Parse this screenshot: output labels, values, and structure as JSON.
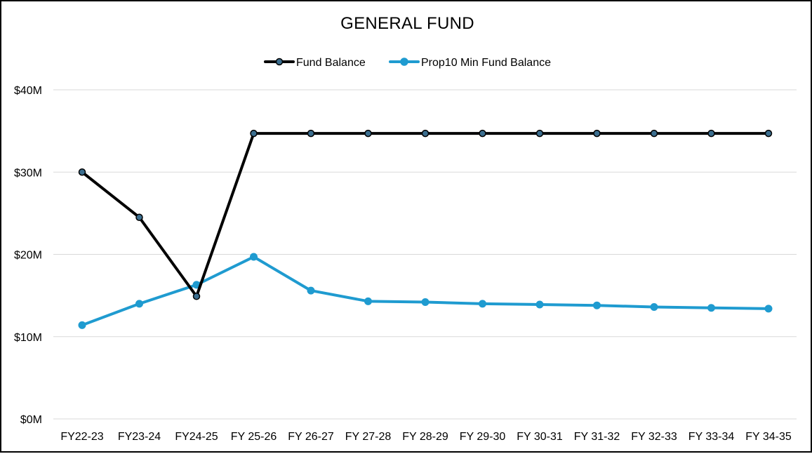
{
  "chart_data": {
    "type": "line",
    "title": "GENERAL FUND",
    "xlabel": "",
    "ylabel": "",
    "categories": [
      "FY22-23",
      "FY23-24",
      "FY24-25",
      "FY 25-26",
      "FY 26-27",
      "FY 27-28",
      "FY 28-29",
      "FY 29-30",
      "FY 30-31",
      "FY 31-32",
      "FY 32-33",
      "FY 33-34",
      "FY 34-35"
    ],
    "ylim": [
      0,
      40
    ],
    "yticks": [
      0,
      10,
      20,
      30,
      40
    ],
    "ytick_labels": [
      "$0M",
      "$10M",
      "$20M",
      "$30M",
      "$40M"
    ],
    "y_unit": "$M",
    "grid": true,
    "legend_position": "top-center",
    "series": [
      {
        "name": "Fund Balance",
        "color": "#000000",
        "marker_fill": "#3b6e8f",
        "values": [
          30.0,
          24.5,
          14.9,
          34.7,
          34.7,
          34.7,
          34.7,
          34.7,
          34.7,
          34.7,
          34.7,
          34.7,
          34.7
        ]
      },
      {
        "name": "Prop10 Min Fund Balance",
        "color": "#1f9bd0",
        "marker_fill": "#1f9bd0",
        "values": [
          11.4,
          14.0,
          16.3,
          19.7,
          15.6,
          14.3,
          14.2,
          14.0,
          13.9,
          13.8,
          13.6,
          13.5,
          13.4
        ]
      }
    ]
  }
}
